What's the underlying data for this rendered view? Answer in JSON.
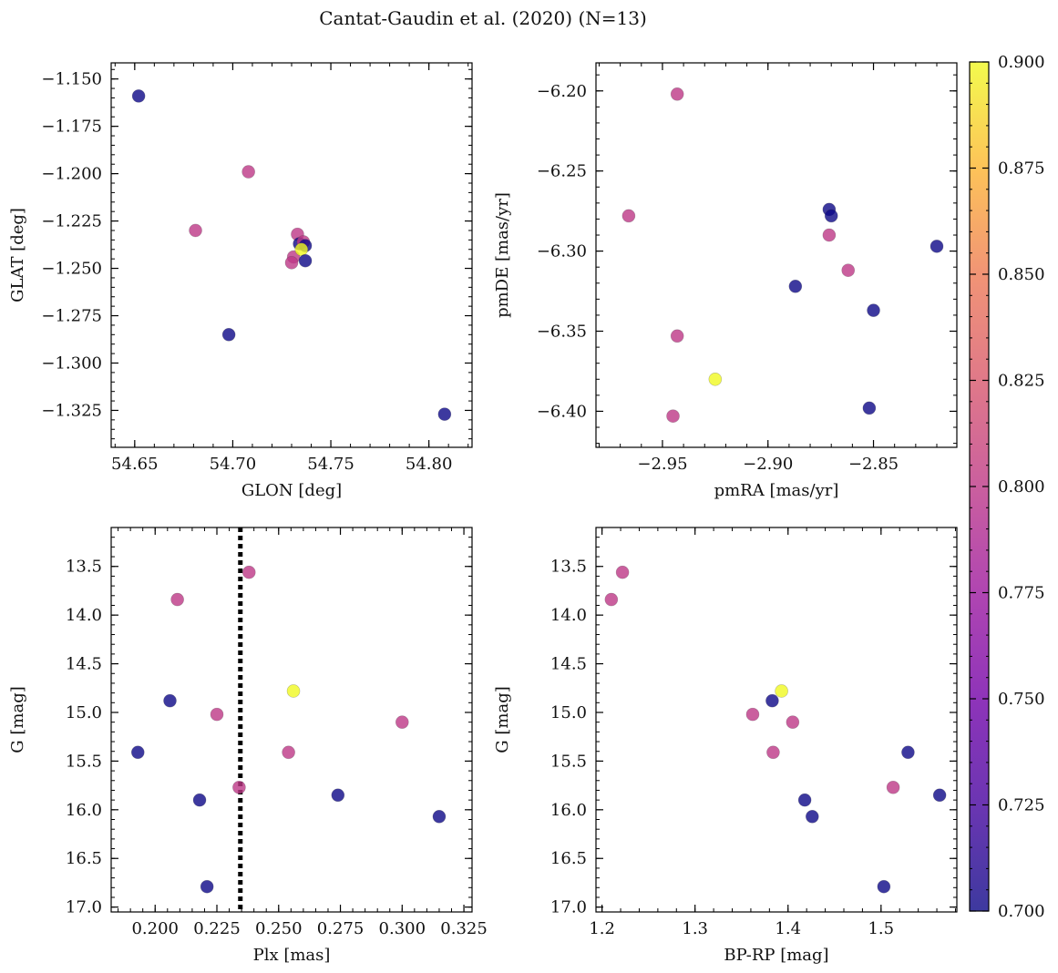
{
  "chart_data": {
    "type": "scatter",
    "title": "Cantat-Gaudin et al. (2020) (N=13)",
    "marker_alpha": 0.8,
    "colorbar": {
      "range": [
        0.7,
        0.9
      ],
      "ticks": [
        "0.700",
        "0.725",
        "0.750",
        "0.775",
        "0.800",
        "0.825",
        "0.850",
        "0.875",
        "0.900"
      ],
      "colormap": "plasma"
    },
    "stars": [
      {
        "glon": 54.652,
        "glat": -1.159,
        "pmra": -2.871,
        "pmde": -6.274,
        "plx": 0.193,
        "g": 15.41,
        "bprp": 1.529,
        "c": 0.7
      },
      {
        "glon": 54.708,
        "glat": -1.199,
        "pmra": -2.943,
        "pmde": -6.202,
        "plx": 0.238,
        "g": 13.56,
        "bprp": 1.222,
        "c": 0.8
      },
      {
        "glon": 54.681,
        "glat": -1.23,
        "pmra": -2.966,
        "pmde": -6.278,
        "plx": 0.209,
        "g": 13.84,
        "bprp": 1.21,
        "c": 0.8
      },
      {
        "glon": 54.733,
        "glat": -1.232,
        "pmra": -2.871,
        "pmde": -6.29,
        "plx": 0.3,
        "g": 15.1,
        "bprp": 1.405,
        "c": 0.8
      },
      {
        "glon": 54.734,
        "glat": -1.237,
        "pmra": -2.87,
        "pmde": -6.278,
        "plx": 0.206,
        "g": 14.88,
        "bprp": 1.383,
        "c": 0.7
      },
      {
        "glon": 54.736,
        "glat": -1.236,
        "pmra": -2.862,
        "pmde": -6.312,
        "plx": 0.225,
        "g": 15.02,
        "bprp": 1.362,
        "c": 0.8
      },
      {
        "glon": 54.737,
        "glat": -1.238,
        "pmra": -2.85,
        "pmde": -6.337,
        "plx": 0.218,
        "g": 15.9,
        "bprp": 1.418,
        "c": 0.7
      },
      {
        "glon": 54.731,
        "glat": -1.244,
        "pmra": -2.943,
        "pmde": -6.353,
        "plx": 0.254,
        "g": 15.41,
        "bprp": 1.384,
        "c": 0.8
      },
      {
        "glon": 54.735,
        "glat": -1.24,
        "pmra": -2.925,
        "pmde": -6.38,
        "plx": 0.256,
        "g": 14.78,
        "bprp": 1.393,
        "c": 0.9
      },
      {
        "glon": 54.73,
        "glat": -1.247,
        "pmra": -2.945,
        "pmde": -6.403,
        "plx": 0.234,
        "g": 15.77,
        "bprp": 1.513,
        "c": 0.8
      },
      {
        "glon": 54.737,
        "glat": -1.246,
        "pmra": -2.887,
        "pmde": -6.322,
        "plx": 0.274,
        "g": 15.85,
        "bprp": 1.563,
        "c": 0.7
      },
      {
        "glon": 54.698,
        "glat": -1.285,
        "pmra": -2.852,
        "pmde": -6.398,
        "plx": 0.221,
        "g": 16.79,
        "bprp": 1.503,
        "c": 0.7
      },
      {
        "glon": 54.808,
        "glat": -1.327,
        "pmra": -2.82,
        "pmde": -6.297,
        "plx": 0.315,
        "g": 16.07,
        "bprp": 1.426,
        "c": 0.7
      }
    ],
    "panels": [
      {
        "id": "glon-glat",
        "x": "glon",
        "y": "glat",
        "xlabel": "GLON [deg]",
        "ylabel": "GLAT [deg]",
        "xlim": [
          54.638,
          54.822
        ],
        "ylim": [
          -1.3445,
          -1.1415
        ],
        "invert_y": false,
        "xticks": [
          54.65,
          54.7,
          54.75,
          54.8
        ],
        "xtick_labels": [
          "54.65",
          "54.70",
          "54.75",
          "54.80"
        ],
        "yticks": [
          -1.15,
          -1.175,
          -1.2,
          -1.225,
          -1.25,
          -1.275,
          -1.3,
          -1.325
        ],
        "ytick_labels": [
          "−1.150",
          "−1.175",
          "−1.200",
          "−1.225",
          "−1.250",
          "−1.275",
          "−1.300",
          "−1.325"
        ],
        "xminor": 0.01,
        "yminor": 0.005
      },
      {
        "id": "pmra-pmde",
        "x": "pmra",
        "y": "pmde",
        "xlabel": "pmRA [mas/yr]",
        "ylabel": "pmDE [mas/yr]",
        "xlim": [
          -2.9815,
          -2.8105
        ],
        "ylim": [
          -6.4225,
          -6.1825
        ],
        "invert_y": false,
        "xticks": [
          -2.95,
          -2.9,
          -2.85
        ],
        "xtick_labels": [
          "−2.95",
          "−2.90",
          "−2.85"
        ],
        "yticks": [
          -6.2,
          -6.25,
          -6.3,
          -6.35,
          -6.4
        ],
        "ytick_labels": [
          "−6.20",
          "−6.25",
          "−6.30",
          "−6.35",
          "−6.40"
        ],
        "xminor": 0.01,
        "yminor": 0.01
      },
      {
        "id": "plx-g",
        "x": "plx",
        "y": "g",
        "xlabel": "Plx [mas]",
        "ylabel": "G [mag]",
        "xlim": [
          0.1822,
          0.3283
        ],
        "ylim": [
          13.1,
          17.05
        ],
        "invert_y": true,
        "xticks": [
          0.2,
          0.225,
          0.25,
          0.275,
          0.3,
          0.325
        ],
        "xtick_labels": [
          "0.200",
          "0.225",
          "0.250",
          "0.275",
          "0.300",
          "0.325"
        ],
        "yticks": [
          13.5,
          14.0,
          14.5,
          15.0,
          15.5,
          16.0,
          16.5,
          17.0
        ],
        "ytick_labels": [
          "13.5",
          "14.0",
          "14.5",
          "15.0",
          "15.5",
          "16.0",
          "16.5",
          "17.0"
        ],
        "xminor": 0.005,
        "yminor": 0.1,
        "vline": 0.2345
      },
      {
        "id": "bprp-g",
        "x": "bprp",
        "y": "g",
        "xlabel": "BP-RP [mag]",
        "ylabel": "G [mag]",
        "xlim": [
          1.1935,
          1.5815
        ],
        "ylim": [
          13.1,
          17.05
        ],
        "invert_y": true,
        "xticks": [
          1.2,
          1.3,
          1.4,
          1.5
        ],
        "xtick_labels": [
          "1.2",
          "1.3",
          "1.4",
          "1.5"
        ],
        "yticks": [
          13.5,
          14.0,
          14.5,
          15.0,
          15.5,
          16.0,
          16.5,
          17.0
        ],
        "ytick_labels": [
          "13.5",
          "14.0",
          "14.5",
          "15.0",
          "15.5",
          "16.0",
          "16.5",
          "17.0"
        ],
        "xminor": 0.02,
        "yminor": 0.1
      }
    ]
  }
}
